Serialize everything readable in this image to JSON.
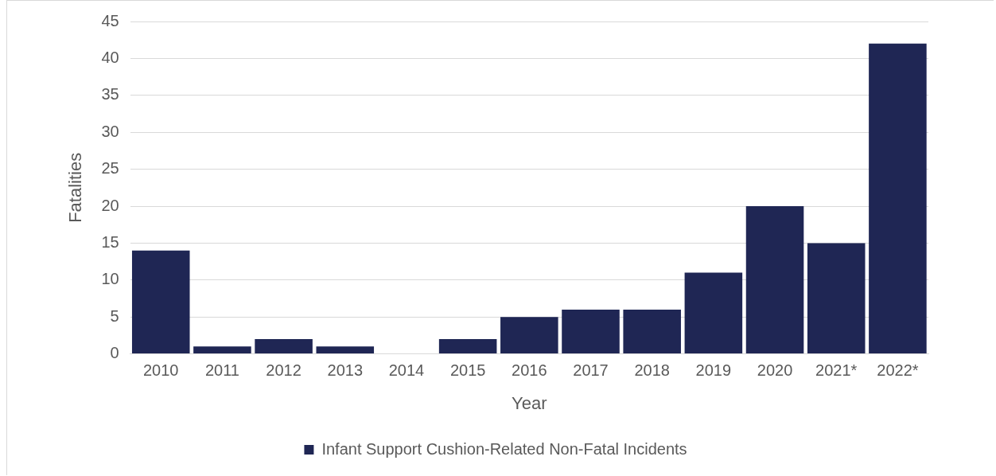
{
  "chart_data": {
    "type": "bar",
    "xlabel": "Year",
    "ylabel": "Fatalities",
    "categories": [
      "2010",
      "2011",
      "2012",
      "2013",
      "2014",
      "2015",
      "2016",
      "2017",
      "2018",
      "2019",
      "2020",
      "2021*",
      "2022*"
    ],
    "series": [
      {
        "name": "Infant Support Cushion-Related Non-Fatal Incidents",
        "color": "#1f2654",
        "values": [
          14,
          1,
          2,
          1,
          0,
          2,
          5,
          6,
          6,
          11,
          20,
          15,
          42
        ]
      }
    ],
    "ylim": [
      0,
      45
    ],
    "yticks": [
      0,
      5,
      10,
      15,
      20,
      25,
      30,
      35,
      40,
      45
    ],
    "grid": "y",
    "legend": "bottom"
  }
}
